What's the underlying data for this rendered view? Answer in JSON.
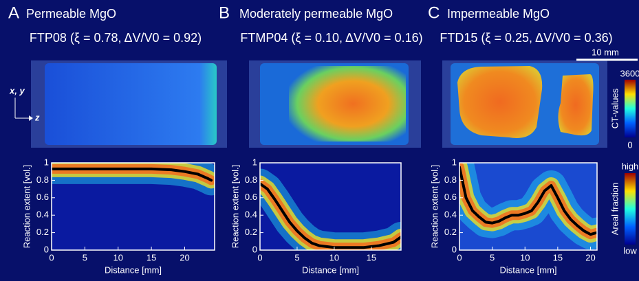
{
  "chart_data": [
    {
      "type": "line",
      "panel_label": "A",
      "title": "Permeable MgO",
      "subtitle": "FTP08 (ξ = 0.78, ΔV/V0 = 0.92)",
      "x_label": "Distance [mm]",
      "y_label": "Reaction extent [vol.]",
      "xlim": [
        0,
        24.5
      ],
      "xticks": [
        0,
        5,
        10,
        15,
        20
      ],
      "ylim": [
        0,
        1
      ],
      "yticks": [
        0,
        0.2,
        0.4,
        0.6,
        0.8,
        1
      ],
      "color": "#000000",
      "x": [
        0,
        2,
        5,
        8,
        10,
        13,
        15,
        18,
        20,
        22,
        23.5,
        24
      ],
      "values": [
        0.93,
        0.93,
        0.93,
        0.93,
        0.93,
        0.93,
        0.93,
        0.92,
        0.9,
        0.87,
        0.82,
        0.8
      ]
    },
    {
      "type": "line",
      "panel_label": "B",
      "title": "Moderately permeable MgO",
      "subtitle": "FTMP04 (ξ = 0.10, ΔV/V0 = 0.16)",
      "x_label": "Distance [mm]",
      "y_label": "Reaction extent [vol.]",
      "xlim": [
        0,
        19
      ],
      "xticks": [
        0,
        5,
        10,
        15
      ],
      "ylim": [
        0,
        1
      ],
      "yticks": [
        0,
        0.2,
        0.4,
        0.6,
        0.8,
        1
      ],
      "color": "#000000",
      "x": [
        0,
        1,
        2,
        3,
        4,
        5,
        6,
        7,
        8,
        10,
        12,
        14,
        16,
        18,
        19
      ],
      "values": [
        0.76,
        0.7,
        0.58,
        0.45,
        0.32,
        0.22,
        0.14,
        0.08,
        0.05,
        0.03,
        0.03,
        0.03,
        0.05,
        0.09,
        0.15
      ]
    },
    {
      "type": "line",
      "panel_label": "C",
      "title": "Impermeable MgO",
      "subtitle": "FTD15 (ξ = 0.25, ΔV/V0 = 0.36)",
      "x_label": "Distance [mm]",
      "y_label": "Reaction extent [vol.]",
      "xlim": [
        0,
        21
      ],
      "xticks": [
        0,
        5,
        10,
        15,
        20
      ],
      "ylim": [
        0,
        1
      ],
      "yticks": [
        0,
        0.2,
        0.4,
        0.6,
        0.8,
        1
      ],
      "color": "#000000",
      "x": [
        0,
        1,
        2,
        3,
        4,
        5,
        6,
        7,
        8,
        9,
        10,
        11,
        12,
        13,
        14,
        15,
        16,
        17,
        18,
        19,
        20,
        21
      ],
      "values": [
        0.95,
        0.6,
        0.45,
        0.38,
        0.32,
        0.31,
        0.33,
        0.37,
        0.4,
        0.4,
        0.42,
        0.45,
        0.55,
        0.68,
        0.74,
        0.6,
        0.45,
        0.35,
        0.28,
        0.22,
        0.18,
        0.2
      ]
    }
  ],
  "scale_bar": "10 mm",
  "orientation": {
    "xy": "x, y",
    "z": "z"
  },
  "ct_colorbar": {
    "label": "CT-values",
    "max": 3600,
    "min": 0
  },
  "fraction_colorbar": {
    "label": "Areal fraction",
    "high": "high",
    "low": "low"
  }
}
